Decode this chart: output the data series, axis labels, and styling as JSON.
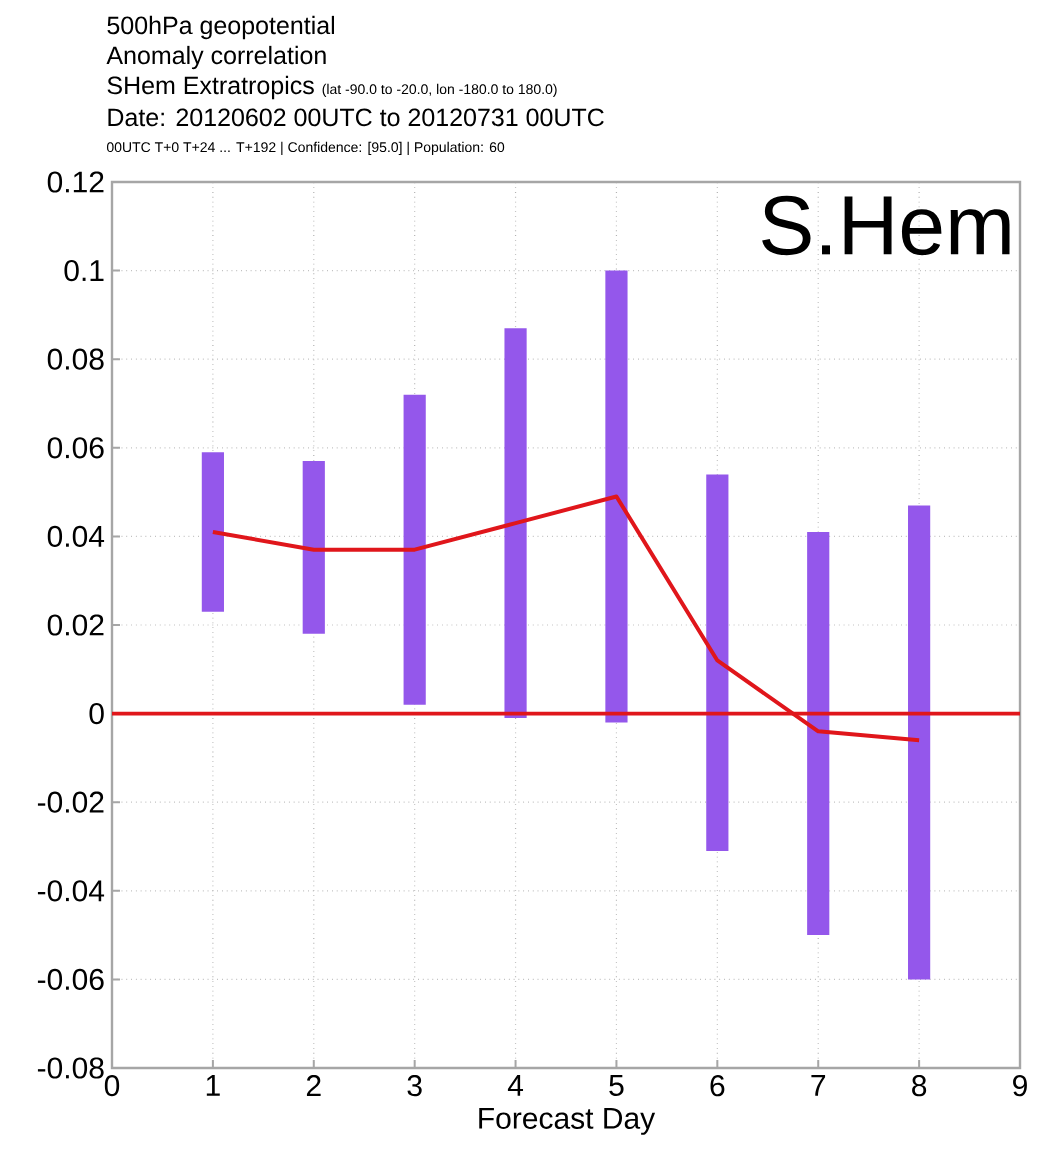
{
  "chart_data": {
    "type": "bar",
    "title": "500hPa geopotential",
    "subtitle": "Anomaly correlation",
    "xlabel": "Forecast Day",
    "annotations": [
      "SHem Extratropics",
      "(lat  -90.0 to -20.0, lon  -180.0 to  180.0)",
      "Date: 20120602 00UTC to 20120731 00UTC",
      "00UTC T+0 T+24 ... T+192 | Confidence: [95.0] | Population: 60",
      "S.Hem"
    ],
    "x": [
      1,
      2,
      3,
      4,
      5,
      6,
      7,
      8
    ],
    "series": [
      {
        "color": "#9457eb",
        "base": [
          0.023,
          0.018,
          0.002,
          -0.001,
          -0.002,
          -0.031,
          -0.05,
          -0.06
        ],
        "values": [
          0.036,
          0.039,
          0.07,
          0.088,
          0.102,
          0.085,
          0.091,
          0.107
        ]
      },
      {
        "type": "line",
        "color": "#e0161b",
        "values": [
          0.041,
          0.037,
          0.037,
          0.043,
          0.049,
          0.012,
          -0.004,
          -0.006
        ]
      }
    ],
    "ref_lines": [
      {
        "axis": "y",
        "value": 0,
        "color": "#e0161b"
      }
    ],
    "xlim": [
      0,
      9
    ],
    "ylim": [
      -0.08,
      0.12
    ],
    "xticks": [
      0,
      1,
      2,
      3,
      4,
      5,
      6,
      7,
      8,
      9
    ],
    "yticks": [
      -0.08,
      -0.06,
      -0.04,
      -0.02,
      0,
      0.02,
      0.04,
      0.06,
      0.08,
      0.1,
      0.12
    ],
    "grid": true
  }
}
